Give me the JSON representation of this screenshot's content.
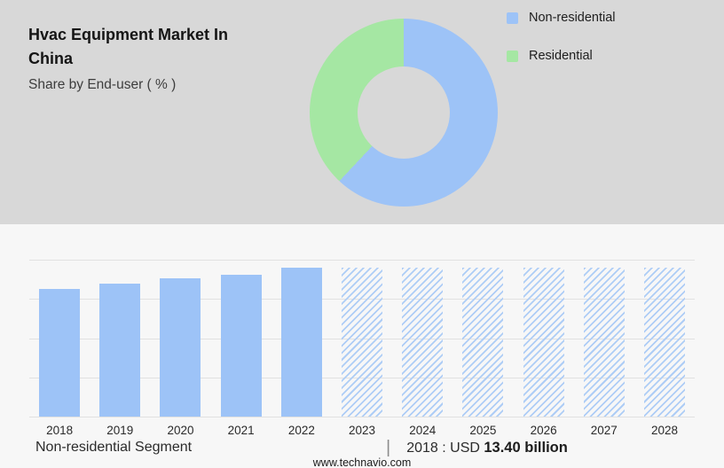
{
  "header": {
    "title": "Hvac Equipment Market In China",
    "subtitle": "Share by End-user ( % )"
  },
  "colors": {
    "non_residential_blue": "#9dc3f7",
    "residential_green": "#a5e7a3",
    "top_background": "#d8d8d8",
    "bottom_background": "#f7f7f7"
  },
  "chart_data": [
    {
      "type": "pie",
      "subtype": "donut",
      "title": "Share by End-user ( % )",
      "labels": [
        "Non-residential",
        "Residential"
      ],
      "values": [
        62,
        38
      ],
      "colors": [
        "#9dc3f7",
        "#a5e7a3"
      ],
      "legend_position": "right"
    },
    {
      "type": "bar",
      "categories": [
        "2018",
        "2019",
        "2020",
        "2021",
        "2022",
        "2023",
        "2024",
        "2025",
        "2026",
        "2027",
        "2028"
      ],
      "values": [
        13.4,
        14.0,
        14.5,
        14.9,
        15.7,
        15.7,
        15.7,
        15.7,
        15.7,
        15.7,
        15.7
      ],
      "actual_categories": [
        "2018",
        "2019",
        "2020",
        "2021",
        "2022"
      ],
      "forecast_categories": [
        "2023",
        "2024",
        "2025",
        "2026",
        "2027",
        "2028"
      ],
      "forecast_style": "diagonal-hatch",
      "title": "",
      "xlabel": "",
      "ylabel": "",
      "ylim": [
        0,
        16.5
      ],
      "grid": true,
      "note": "2018 value labeled as USD 13.40 billion; other values estimated from bar heights"
    }
  ],
  "footer": {
    "segment_label": "Non-residential Segment",
    "separator": "|",
    "value_prefix": "2018 : USD",
    "value_bold": "13.40 billion",
    "website": "www.technavio.com"
  }
}
